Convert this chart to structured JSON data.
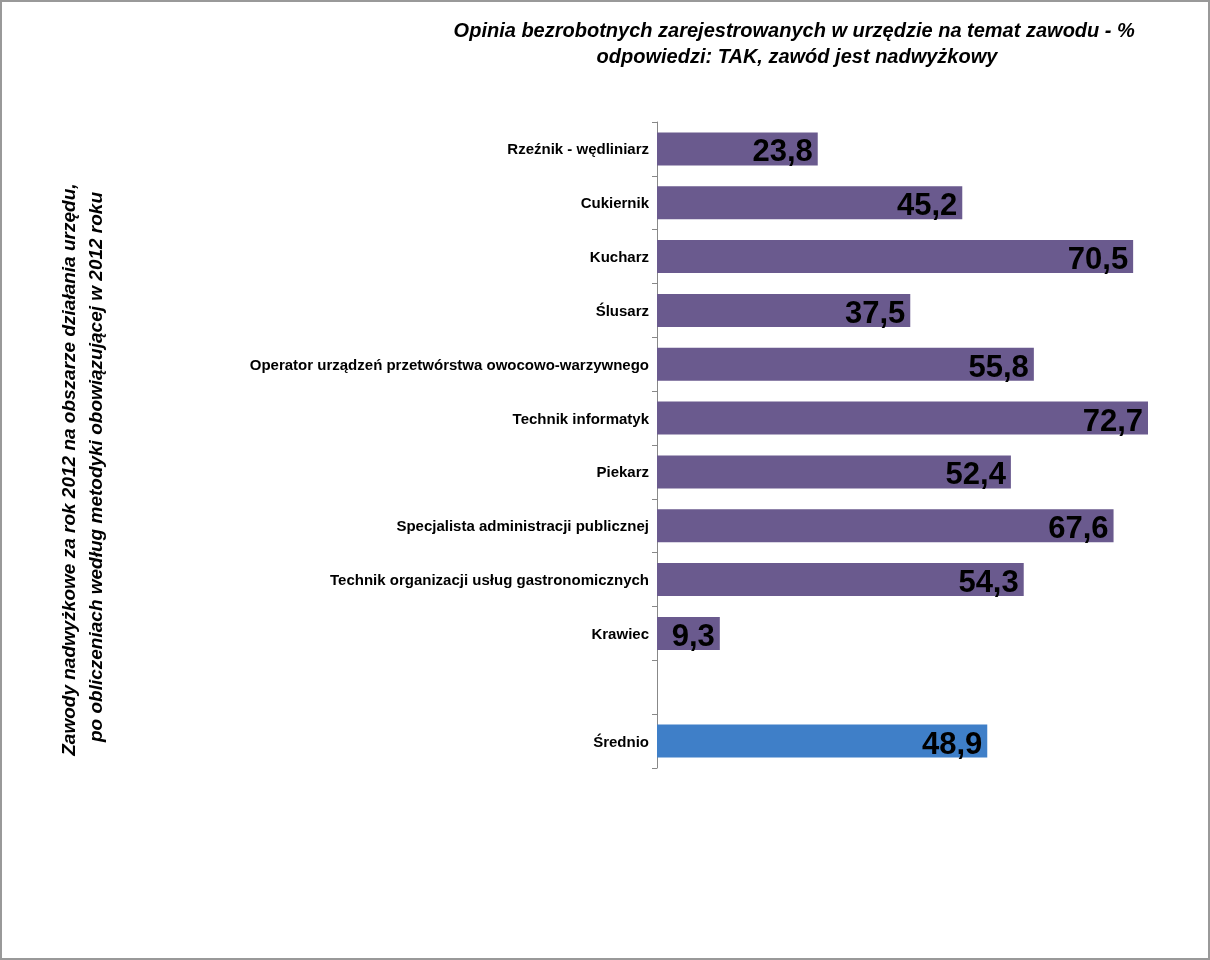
{
  "chart_data": {
    "type": "bar",
    "orientation": "horizontal",
    "title": "Opinia bezrobotnych zarejestrowanych w urzędzie na temat zawodu - % odpowiedzi: TAK, zawód jest nadwyżkowy",
    "annotations": [
      "Zawody nadwyżkowe za rok 2012 na obszarze działania urzędu, po obliczeniach według metodyki obowiązującej w 2012 roku"
    ],
    "categories": [
      "Rzeźnik - wędliniarz",
      "Cukiernik",
      "Kucharz",
      "Ślusarz",
      "Operator urządzeń przetwórstwa owocowo-warzywnego",
      "Technik informatyk",
      "Piekarz",
      "Specjalista administracji publicznej",
      "Technik organizacji usług gastronomicznych",
      "Krawiec",
      null,
      "Średnio"
    ],
    "values": [
      23.8,
      45.2,
      70.5,
      37.5,
      55.8,
      72.7,
      52.4,
      67.6,
      54.3,
      9.3,
      null,
      48.9
    ],
    "colors": [
      "#6a5a8e",
      "#6a5a8e",
      "#6a5a8e",
      "#6a5a8e",
      "#6a5a8e",
      "#6a5a8e",
      "#6a5a8e",
      "#6a5a8e",
      "#6a5a8e",
      "#6a5a8e",
      "#6a5a8e",
      "#3f7fc8"
    ],
    "value_labels": [
      "23,8",
      "45,2",
      "70,5",
      "37,5",
      "55,8",
      "72,7",
      "52,4",
      "67,6",
      "54,3",
      "9,3",
      null,
      "48,9"
    ],
    "grid": false
  }
}
